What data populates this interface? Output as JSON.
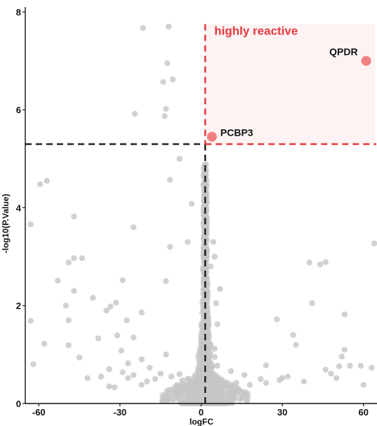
{
  "chart_data": {
    "type": "scatter",
    "title": "",
    "xlabel": "logFC",
    "ylabel": "-log10(P.Value)",
    "xlim": [
      -65,
      65
    ],
    "ylim": [
      0,
      8.1
    ],
    "x_ticks": [
      -60,
      -30,
      0,
      30,
      60
    ],
    "y_ticks": [
      0,
      2,
      4,
      6,
      8
    ],
    "x_tick_labels": [
      "-60",
      "-30",
      "0",
      "30",
      "60"
    ],
    "y_tick_labels": [
      "0",
      "2",
      "4",
      "6",
      "8"
    ],
    "grid": false,
    "threshold_x": 1.5,
    "threshold_y": 5.3,
    "highlight_region_label": "highly reactive",
    "colors": {
      "points": "#c6c6c6",
      "highlight": "#f08080",
      "threshold": "#222222",
      "highlight_region_border": "#e8383d",
      "highlight_region_fill": "#fdf3f3"
    },
    "highlighted": [
      {
        "label": "QPDR",
        "x": 61,
        "y": 7.0
      },
      {
        "label": "PCBP3",
        "x": 4,
        "y": 5.45
      }
    ],
    "points": [
      [
        -21.5,
        7.67
      ],
      [
        -12,
        7.7
      ],
      [
        -12.5,
        6.95
      ],
      [
        -14,
        6.57
      ],
      [
        -10.5,
        6.62
      ],
      [
        -13.5,
        5.87
      ],
      [
        -13,
        6.02
      ],
      [
        -24.5,
        5.92
      ],
      [
        -8,
        5.0
      ],
      [
        -11.5,
        4.57
      ],
      [
        -59.5,
        4.48
      ],
      [
        -57,
        4.55
      ],
      [
        -3.5,
        4.08
      ],
      [
        -47,
        3.82
      ],
      [
        -25,
        3.6
      ],
      [
        -63,
        3.66
      ],
      [
        -5,
        3.3
      ],
      [
        -11.5,
        3.2
      ],
      [
        -47,
        2.97
      ],
      [
        -44,
        2.97
      ],
      [
        -49,
        2.88
      ],
      [
        -29,
        2.52
      ],
      [
        -53,
        2.51
      ],
      [
        -13,
        2.5
      ],
      [
        -47,
        2.3
      ],
      [
        -40,
        2.16
      ],
      [
        -31.5,
        2.06
      ],
      [
        -50,
        2.0
      ],
      [
        -35,
        1.9
      ],
      [
        -33.5,
        1.98
      ],
      [
        -27.5,
        1.7
      ],
      [
        -22,
        1.86
      ],
      [
        -49,
        1.7
      ],
      [
        -63,
        1.69
      ],
      [
        -31,
        1.39
      ],
      [
        -25,
        1.35
      ],
      [
        -58,
        1.22
      ],
      [
        -49,
        1.19
      ],
      [
        -38,
        1.33
      ],
      [
        -29.5,
        1.08
      ],
      [
        -13,
        1.0
      ],
      [
        -22,
        0.9
      ],
      [
        -27,
        0.82
      ],
      [
        -45,
        0.94
      ],
      [
        -62,
        0.8
      ],
      [
        -34,
        0.7
      ],
      [
        -29,
        0.64
      ],
      [
        -27,
        0.52
      ],
      [
        -25,
        0.58
      ],
      [
        -37,
        0.55
      ],
      [
        -42,
        0.52
      ],
      [
        -19,
        0.73
      ],
      [
        -15,
        0.61
      ],
      [
        -17,
        0.5
      ],
      [
        -11,
        0.55
      ],
      [
        -8,
        0.6
      ],
      [
        -7,
        0.47
      ],
      [
        -34,
        0.35
      ],
      [
        -32,
        0.33
      ],
      [
        -22,
        0.38
      ],
      [
        -20,
        0.45
      ],
      [
        -9,
        0.38
      ],
      [
        -5,
        0.36
      ],
      [
        -3,
        0.33
      ],
      [
        -5,
        0.5
      ],
      [
        5,
        1.12
      ],
      [
        5,
        0.95
      ],
      [
        6,
        0.77
      ],
      [
        11,
        0.66
      ],
      [
        16,
        0.58
      ],
      [
        22,
        0.5
      ],
      [
        24,
        0.42
      ],
      [
        18,
        0.38
      ],
      [
        10,
        0.35
      ],
      [
        13,
        0.42
      ],
      [
        4.5,
        3.3
      ],
      [
        5,
        3.0
      ],
      [
        3.5,
        2.8
      ],
      [
        7,
        2.34
      ],
      [
        6,
        1.62
      ],
      [
        5.5,
        2.05
      ],
      [
        28,
        1.72
      ],
      [
        34,
        1.4
      ],
      [
        40,
        2.88
      ],
      [
        44,
        2.84
      ],
      [
        46,
        2.89
      ],
      [
        41,
        2.05
      ],
      [
        53,
        1.82
      ],
      [
        51,
        0.76
      ],
      [
        46,
        0.69
      ],
      [
        52,
        0.96
      ],
      [
        55,
        0.77
      ],
      [
        59,
        0.77
      ],
      [
        60,
        0.38
      ],
      [
        63,
        0.73
      ],
      [
        64,
        3.27
      ],
      [
        35,
        1.2
      ],
      [
        53,
        1.1
      ],
      [
        24,
        0.78
      ],
      [
        32,
        0.55
      ],
      [
        29,
        0.48
      ],
      [
        30,
        0.52
      ],
      [
        38,
        0.45
      ],
      [
        50,
        0.52
      ],
      [
        48,
        0.61
      ]
    ]
  }
}
